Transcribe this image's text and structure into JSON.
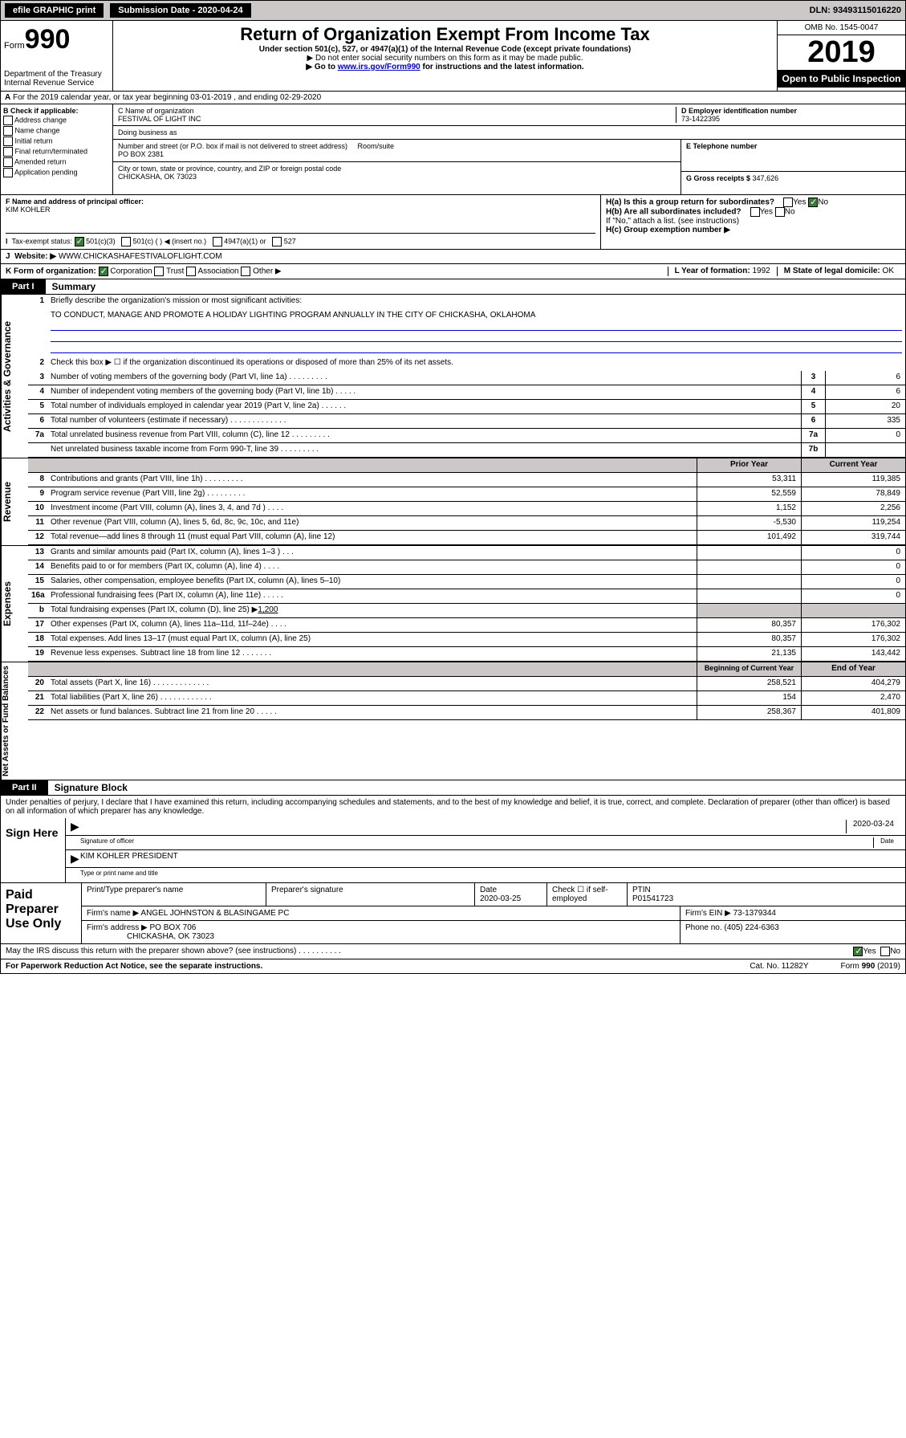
{
  "top": {
    "efile": "efile GRAPHIC print",
    "subdate_label": "Submission Date - 2020-04-24",
    "dln": "DLN: 93493115016220"
  },
  "header": {
    "form_label": "Form",
    "form_num": "990",
    "dept": "Department of the Treasury\nInternal Revenue Service",
    "title": "Return of Organization Exempt From Income Tax",
    "sub": "Under section 501(c), 527, or 4947(a)(1) of the Internal Revenue Code (except private foundations)",
    "note1": "▶ Do not enter social security numbers on this form as it may be made public.",
    "note2_pre": "▶ Go to ",
    "note2_link": "www.irs.gov/Form990",
    "note2_post": " for instructions and the latest information.",
    "omb": "OMB No. 1545-0047",
    "year": "2019",
    "open": "Open to Public Inspection"
  },
  "a": "For the 2019 calendar year, or tax year beginning 03-01-2019    , and ending 02-29-2020",
  "b": {
    "label": "B Check if applicable:",
    "opts": [
      "Address change",
      "Name change",
      "Initial return",
      "Final return/terminated",
      "Amended return",
      "Application pending"
    ]
  },
  "c": {
    "name_label": "C Name of organization",
    "name": "FESTIVAL OF LIGHT INC",
    "dba_label": "Doing business as",
    "addr_label": "Number and street (or P.O. box if mail is not delivered to street address)",
    "room_label": "Room/suite",
    "addr": "PO BOX 2381",
    "city_label": "City or town, state or province, country, and ZIP or foreign postal code",
    "city": "CHICKASHA, OK  73023"
  },
  "d": {
    "label": "D Employer identification number",
    "val": "73-1422395"
  },
  "e": {
    "label": "E Telephone number",
    "val": ""
  },
  "g": {
    "label": "G Gross receipts $ ",
    "val": "347,626"
  },
  "f": {
    "label": "F  Name and address of principal officer:",
    "val": "KIM KOHLER"
  },
  "h": {
    "a": "H(a)  Is this a group return for subordinates?",
    "b": "H(b)  Are all subordinates included?",
    "b_note": "If \"No,\" attach a list. (see instructions)",
    "c": "H(c)  Group exemption number ▶"
  },
  "i": {
    "label": "Tax-exempt status:",
    "opts": [
      "501(c)(3)",
      "501(c) (  ) ◀ (insert no.)",
      "4947(a)(1) or",
      "527"
    ]
  },
  "j": {
    "label": "Website: ▶",
    "val": "WWW.CHICKASHAFESTIVALOFLIGHT.COM"
  },
  "k": "K Form of organization:",
  "k_opts": [
    "Corporation",
    "Trust",
    "Association",
    "Other ▶"
  ],
  "l": {
    "label": "L Year of formation: ",
    "val": "1992"
  },
  "m": {
    "label": "M State of legal domicile: ",
    "val": "OK"
  },
  "part1": {
    "tab": "Part I",
    "title": "Summary"
  },
  "governance": {
    "label": "Activities & Governance",
    "l1": "Briefly describe the organization's mission or most significant activities:",
    "l1val": "TO CONDUCT, MANAGE AND PROMOTE A HOLIDAY LIGHTING PROGRAM ANNUALLY IN THE CITY OF CHICKASHA, OKLAHOMA",
    "l2": "Check this box ▶ ☐  if the organization discontinued its operations or disposed of more than 25% of its net assets.",
    "l3": "Number of voting members of the governing body (Part VI, line 1a)  .   .   .   .   .   .   .   .   .",
    "l3v": "6",
    "l4": "Number of independent voting members of the governing body (Part VI, line 1b)  .   .   .   .   .",
    "l4v": "6",
    "l5": "Total number of individuals employed in calendar year 2019 (Part V, line 2a)  .   .   .   .   .   .",
    "l5v": "20",
    "l6": "Total number of volunteers (estimate if necessary)  .   .   .   .   .   .   .   .   .   .   .   .   .",
    "l6v": "335",
    "l7a": "Total unrelated business revenue from Part VIII, column (C), line 12  .   .   .   .   .   .   .   .   .",
    "l7av": "0",
    "l7b": "Net unrelated business taxable income from Form 990-T, line 39  .   .   .   .   .   .   .   .   .",
    "l7bv": ""
  },
  "revenue": {
    "label": "Revenue",
    "hprior": "Prior Year",
    "hcurrent": "Current Year",
    "rows": [
      {
        "n": "8",
        "t": "Contributions and grants (Part VIII, line 1h)  .   .   .   .   .   .   .   .   .",
        "p": "53,311",
        "c": "119,385"
      },
      {
        "n": "9",
        "t": "Program service revenue (Part VIII, line 2g)  .   .   .   .   .   .   .   .   .",
        "p": "52,559",
        "c": "78,849"
      },
      {
        "n": "10",
        "t": "Investment income (Part VIII, column (A), lines 3, 4, and 7d )  .   .   .   .",
        "p": "1,152",
        "c": "2,256"
      },
      {
        "n": "11",
        "t": "Other revenue (Part VIII, column (A), lines 5, 6d, 8c, 9c, 10c, and 11e)",
        "p": "-5,530",
        "c": "119,254"
      },
      {
        "n": "12",
        "t": "Total revenue—add lines 8 through 11 (must equal Part VIII, column (A), line 12)",
        "p": "101,492",
        "c": "319,744"
      }
    ]
  },
  "expenses": {
    "label": "Expenses",
    "rows": [
      {
        "n": "13",
        "t": "Grants and similar amounts paid (Part IX, column (A), lines 1–3 )  .   .   .",
        "p": "",
        "c": "0"
      },
      {
        "n": "14",
        "t": "Benefits paid to or for members (Part IX, column (A), line 4)  .   .   .   .",
        "p": "",
        "c": "0"
      },
      {
        "n": "15",
        "t": "Salaries, other compensation, employee benefits (Part IX, column (A), lines 5–10)",
        "p": "",
        "c": "0"
      },
      {
        "n": "16a",
        "t": "Professional fundraising fees (Part IX, column (A), line 11e)  .   .   .   .   .",
        "p": "",
        "c": "0"
      }
    ],
    "l16b": "Total fundraising expenses (Part IX, column (D), line 25) ▶",
    "l16bv": "1,200",
    "rows2": [
      {
        "n": "17",
        "t": "Other expenses (Part IX, column (A), lines 11a–11d, 11f–24e)  .   .   .   .",
        "p": "80,357",
        "c": "176,302"
      },
      {
        "n": "18",
        "t": "Total expenses. Add lines 13–17 (must equal Part IX, column (A), line 25)",
        "p": "80,357",
        "c": "176,302"
      },
      {
        "n": "19",
        "t": "Revenue less expenses. Subtract line 18 from line 12  .   .   .   .   .   .   .",
        "p": "21,135",
        "c": "143,442"
      }
    ]
  },
  "netassets": {
    "label": "Net Assets or Fund Balances",
    "hbeg": "Beginning of Current Year",
    "hend": "End of Year",
    "rows": [
      {
        "n": "20",
        "t": "Total assets (Part X, line 16)  .   .   .   .   .   .   .   .   .   .   .   .   .",
        "p": "258,521",
        "c": "404,279"
      },
      {
        "n": "21",
        "t": "Total liabilities (Part X, line 26)  .   .   .   .   .   .   .   .   .   .   .   .",
        "p": "154",
        "c": "2,470"
      },
      {
        "n": "22",
        "t": "Net assets or fund balances. Subtract line 21 from line 20  .   .   .   .   .",
        "p": "258,367",
        "c": "401,809"
      }
    ]
  },
  "part2": {
    "tab": "Part II",
    "title": "Signature Block"
  },
  "sig": {
    "text": "Under penalties of perjury, I declare that I have examined this return, including accompanying schedules and statements, and to the best of my knowledge and belief, it is true, correct, and complete. Declaration of preparer (other than officer) is based on all information of which preparer has any knowledge.",
    "here": "Sign Here",
    "sig_officer": "Signature of officer",
    "date": "2020-03-24",
    "date_label": "Date",
    "name": "KIM KOHLER  PRESIDENT",
    "name_label": "Type or print name and title"
  },
  "paid": {
    "label": "Paid Preparer Use Only",
    "h1": "Print/Type preparer's name",
    "h2": "Preparer's signature",
    "h3": "Date",
    "h3v": "2020-03-25",
    "h4": "Check ☐ if self-employed",
    "h5": "PTIN",
    "h5v": "P01541723",
    "firm_label": "Firm's name    ▶",
    "firm": "ANGEL JOHNSTON & BLASINGAME PC",
    "ein_label": "Firm's EIN ▶",
    "ein": "73-1379344",
    "addr_label": "Firm's address ▶",
    "addr": "PO BOX 706",
    "addr2": "CHICKASHA, OK  73023",
    "phone_label": "Phone no. ",
    "phone": "(405) 224-6363"
  },
  "discuss": "May the IRS discuss this return with the preparer shown above? (see instructions)  .   .   .   .   .   .   .   .   .   .",
  "footer": {
    "left": "For Paperwork Reduction Act Notice, see the separate instructions.",
    "mid": "Cat. No. 11282Y",
    "right": "Form 990 (2019)"
  }
}
